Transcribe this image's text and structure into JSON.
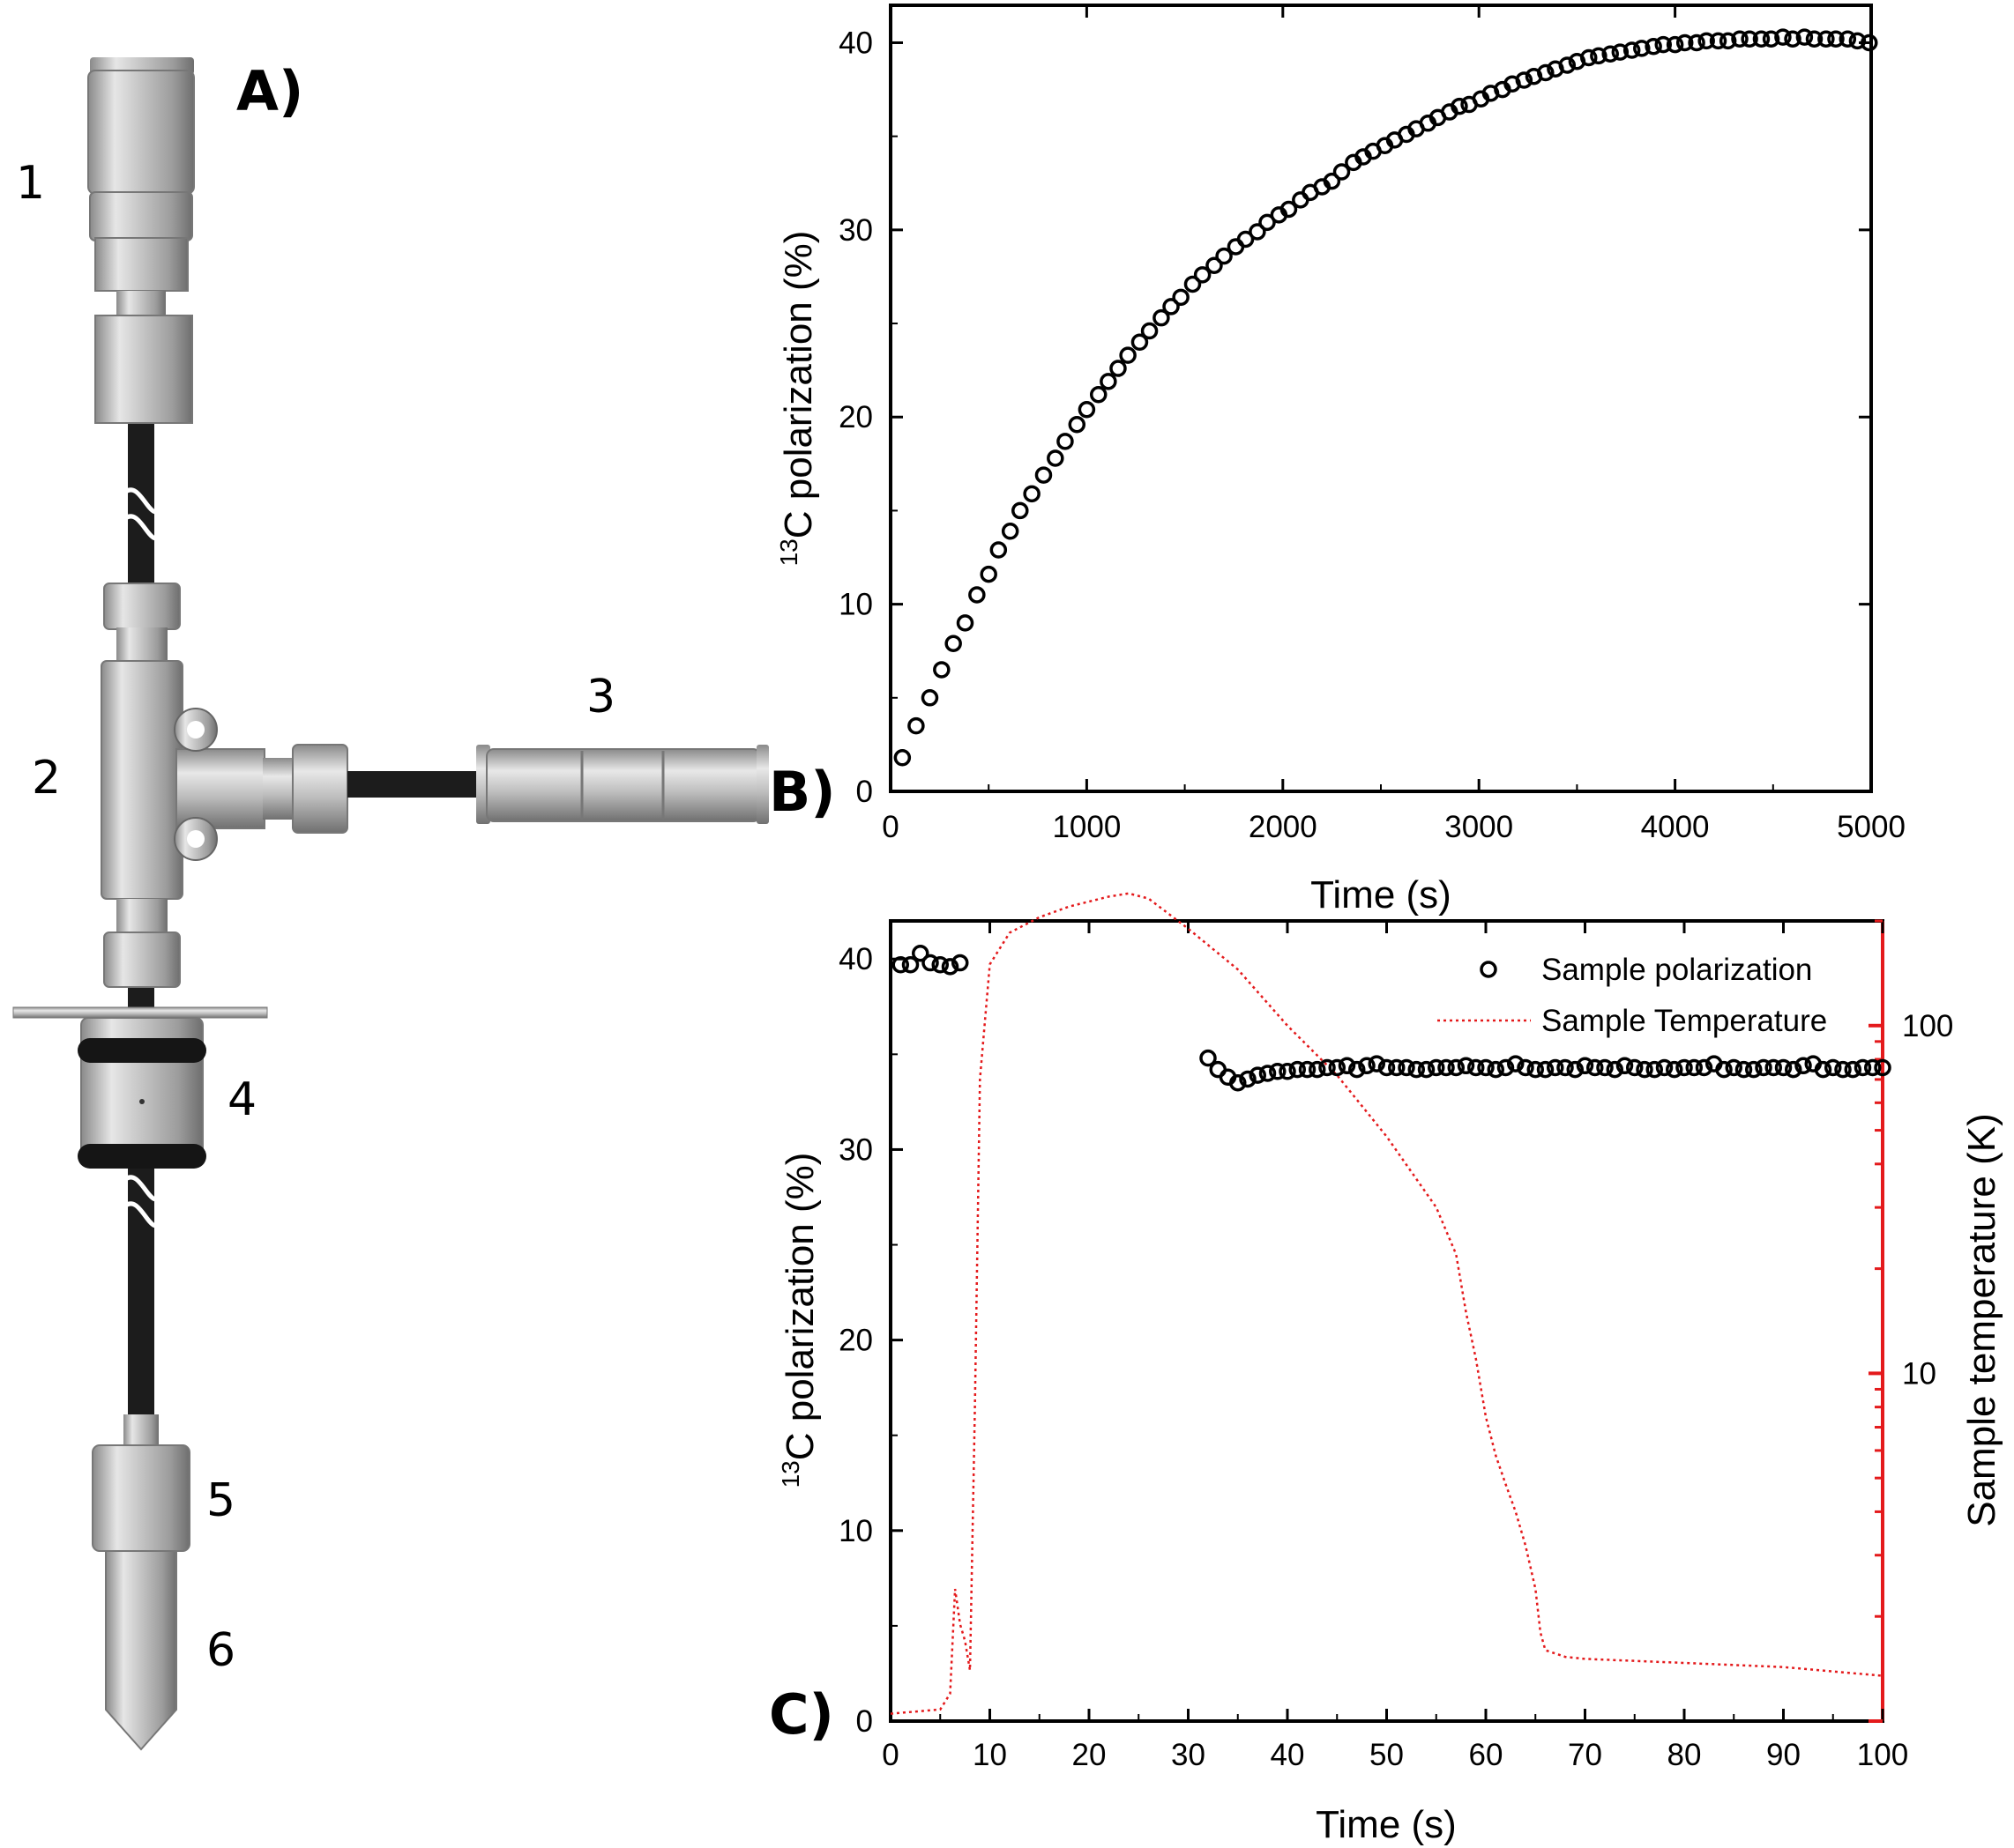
{
  "panels": {
    "a": {
      "letter": "A)",
      "parts": [
        "1",
        "2",
        "3",
        "4",
        "5",
        "6"
      ]
    },
    "b": {
      "letter": "B)"
    },
    "c": {
      "letter": "C)"
    }
  },
  "colors": {
    "axis": "#000000",
    "temperature": "#e41a1c",
    "metal_light": "#d8d8d8",
    "metal_dark": "#7a7a7a",
    "tube": "#1c1c1c",
    "oring": "#151515"
  },
  "icons": [
    "sample-holder-assembly-illustration"
  ],
  "chart_data": [
    {
      "type": "scatter",
      "panel": "B",
      "xlabel": "Time (s)",
      "ylabel_sup": "13",
      "ylabel_rest": "C polarization (%)",
      "xlim": [
        0,
        5000
      ],
      "ylim": [
        0,
        42
      ],
      "xticks": [
        0,
        1000,
        2000,
        3000,
        4000,
        5000
      ],
      "yticks": [
        0,
        10,
        20,
        30,
        40
      ],
      "grid": false,
      "series": [
        {
          "marker": "open-circle",
          "x": [
            60,
            130,
            200,
            260,
            320,
            380,
            440,
            500,
            550,
            610,
            660,
            720,
            780,
            840,
            890,
            950,
            1000,
            1060,
            1110,
            1160,
            1210,
            1270,
            1320,
            1380,
            1430,
            1480,
            1540,
            1590,
            1650,
            1700,
            1760,
            1810,
            1870,
            1920,
            1980,
            2030,
            2090,
            2140,
            2200,
            2250,
            2300,
            2360,
            2410,
            2460,
            2520,
            2570,
            2630,
            2680,
            2740,
            2790,
            2850,
            2900,
            2950,
            3010,
            3060,
            3120,
            3170,
            3230,
            3280,
            3340,
            3390,
            3450,
            3500,
            3560,
            3610,
            3670,
            3720,
            3780,
            3830,
            3890,
            3940,
            4000,
            4050,
            4110,
            4160,
            4220,
            4270,
            4330,
            4380,
            4440,
            4490,
            4550,
            4600,
            4660,
            4710,
            4770,
            4820,
            4880,
            4930,
            4990
          ],
          "y": [
            1.8,
            3.5,
            5.0,
            6.5,
            7.9,
            9.0,
            10.5,
            11.6,
            12.9,
            13.9,
            15.0,
            15.9,
            16.9,
            17.8,
            18.7,
            19.6,
            20.4,
            21.2,
            21.9,
            22.6,
            23.3,
            24.0,
            24.6,
            25.3,
            25.9,
            26.4,
            27.1,
            27.6,
            28.1,
            28.6,
            29.1,
            29.5,
            29.9,
            30.4,
            30.8,
            31.1,
            31.6,
            32.0,
            32.3,
            32.6,
            33.1,
            33.6,
            33.9,
            34.2,
            34.5,
            34.8,
            35.1,
            35.4,
            35.7,
            36.0,
            36.3,
            36.6,
            36.7,
            37.0,
            37.3,
            37.5,
            37.8,
            38.0,
            38.2,
            38.4,
            38.6,
            38.8,
            39.0,
            39.2,
            39.3,
            39.4,
            39.5,
            39.6,
            39.7,
            39.8,
            39.9,
            39.9,
            40.0,
            40.0,
            40.1,
            40.1,
            40.1,
            40.2,
            40.2,
            40.2,
            40.2,
            40.3,
            40.2,
            40.3,
            40.2,
            40.2,
            40.2,
            40.2,
            40.1,
            40.0
          ]
        }
      ]
    },
    {
      "type": "scatter",
      "panel": "C",
      "xlabel": "Time (s)",
      "ylabel_sup": "13",
      "ylabel_rest": "C polarization (%)",
      "y2label": "Sample temperature (K)",
      "xlim": [
        0,
        100
      ],
      "ylim": [
        0,
        42
      ],
      "y2lim": [
        1,
        200
      ],
      "y2scale": "log",
      "xticks": [
        0,
        10,
        20,
        30,
        40,
        50,
        60,
        70,
        80,
        90,
        100
      ],
      "yticks": [
        0,
        10,
        20,
        30,
        40
      ],
      "y2ticks": [
        10,
        100
      ],
      "grid": false,
      "legend_position": "top-right",
      "series": [
        {
          "name": "Sample polarization",
          "marker": "open-circle",
          "x": [
            1,
            2,
            3,
            4,
            5,
            6,
            7,
            32,
            33,
            34,
            35,
            36,
            37,
            38,
            39,
            40,
            41,
            42,
            43,
            44,
            45,
            46,
            47,
            48,
            49,
            50,
            51,
            52,
            53,
            54,
            55,
            56,
            57,
            58,
            59,
            60,
            61,
            62,
            63,
            64,
            65,
            66,
            67,
            68,
            69,
            70,
            71,
            72,
            73,
            74,
            75,
            76,
            77,
            78,
            79,
            80,
            81,
            82,
            83,
            84,
            85,
            86,
            87,
            88,
            89,
            90,
            91,
            92,
            93,
            94,
            95,
            96,
            97,
            98,
            99,
            100
          ],
          "y": [
            39.7,
            39.7,
            40.3,
            39.8,
            39.7,
            39.6,
            39.8,
            34.8,
            34.2,
            33.8,
            33.5,
            33.7,
            33.9,
            34.0,
            34.1,
            34.1,
            34.2,
            34.2,
            34.2,
            34.3,
            34.3,
            34.4,
            34.2,
            34.4,
            34.5,
            34.3,
            34.3,
            34.3,
            34.2,
            34.2,
            34.3,
            34.3,
            34.3,
            34.4,
            34.3,
            34.3,
            34.2,
            34.3,
            34.5,
            34.3,
            34.2,
            34.2,
            34.3,
            34.3,
            34.2,
            34.4,
            34.3,
            34.3,
            34.2,
            34.4,
            34.3,
            34.2,
            34.2,
            34.3,
            34.2,
            34.3,
            34.3,
            34.3,
            34.5,
            34.2,
            34.3,
            34.2,
            34.2,
            34.3,
            34.3,
            34.3,
            34.2,
            34.4,
            34.5,
            34.2,
            34.3,
            34.2,
            34.2,
            34.3,
            34.3,
            34.3
          ]
        },
        {
          "name": "Sample Temperature",
          "axis": "right",
          "line": "dotted",
          "x": [
            0,
            5,
            6,
            6.5,
            7,
            7.5,
            8,
            8.5,
            9,
            10,
            12,
            15,
            18,
            22,
            24,
            26,
            30,
            35,
            40,
            45,
            50,
            55,
            57,
            58,
            59,
            60,
            61,
            62,
            63,
            64,
            65,
            65.5,
            66,
            68,
            70,
            80,
            90,
            100
          ],
          "y": [
            1.05,
            1.08,
            1.2,
            2.4,
            1.9,
            1.7,
            1.4,
            8,
            70,
            150,
            185,
            205,
            220,
            235,
            240,
            232,
            190,
            145,
            100,
            72,
            48,
            30,
            22,
            15,
            11,
            7.5,
            5.8,
            4.8,
            4.0,
            3.2,
            2.4,
            1.8,
            1.6,
            1.53,
            1.51,
            1.47,
            1.43,
            1.35
          ]
        }
      ]
    }
  ]
}
